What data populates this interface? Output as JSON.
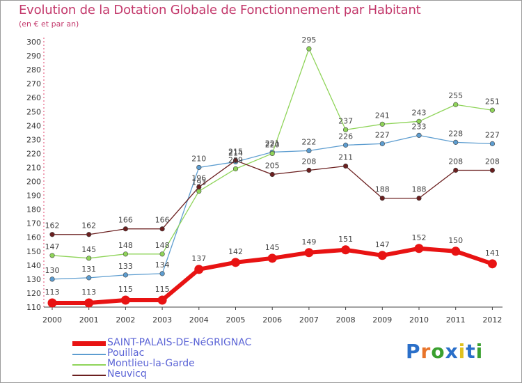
{
  "title": "Evolution de la Dotation Globale de Fonctionnement par Habitant",
  "subtitle": "(en € et par an)",
  "logo": {
    "text": "Proxiti",
    "colors": [
      "#2a6fc9",
      "#e8742a",
      "#3aa02f",
      "#2a6fc9",
      "#e0c11f",
      "#2a6fc9",
      "#3aa02f"
    ]
  },
  "chart_data": {
    "type": "line",
    "title": "Evolution de la Dotation Globale de Fonctionnement par Habitant",
    "subtitle": "(en € et par an)",
    "ylim": [
      110,
      300
    ],
    "y_ticks": [
      "110",
      "120",
      "130",
      "140",
      "150",
      "160",
      "170",
      "180",
      "190",
      "200",
      "210",
      "220",
      "230",
      "240",
      "250",
      "260",
      "270",
      "280",
      "290",
      "300"
    ],
    "x": [
      "2000",
      "2001",
      "2002",
      "2003",
      "2004",
      "2005",
      "2006",
      "2007",
      "2008",
      "2009",
      "2010",
      "2011",
      "2012"
    ],
    "grid": false,
    "legend_position": "bottom-left",
    "series": [
      {
        "name": "SAINT-PALAIS-DE-NéGRIGNAC",
        "color": "#e81313",
        "values": [
          113,
          113,
          115,
          115,
          137,
          142,
          145,
          149,
          151,
          147,
          152,
          150,
          141
        ],
        "labels": [
          "113",
          "113",
          "115",
          "115",
          "137",
          "142",
          "145",
          "149",
          "151",
          "147",
          "152",
          "150",
          "141"
        ]
      },
      {
        "name": "Pouillac",
        "color": "#5d9dd0",
        "values": [
          130,
          131,
          133,
          134,
          210,
          214,
          221,
          222,
          226,
          227,
          233,
          228,
          227
        ],
        "labels": [
          "130",
          "131",
          "133",
          "134",
          "210",
          "214",
          "221",
          "222",
          "226",
          "227",
          "233",
          "228",
          "227"
        ]
      },
      {
        "name": "Montlieu-la-Garde",
        "color": "#8fd459",
        "values": [
          147,
          145,
          148,
          148,
          193,
          209,
          220,
          295,
          237,
          241,
          243,
          255,
          251
        ],
        "labels": [
          "147",
          "145",
          "148",
          "148",
          "193",
          "209",
          "220",
          "295",
          "237",
          "241",
          "243",
          "255",
          "251"
        ]
      },
      {
        "name": "Neuvicq",
        "color": "#6b1f1f",
        "values": [
          162,
          162,
          166,
          166,
          196,
          215,
          205,
          208,
          211,
          188,
          188,
          208,
          208
        ],
        "labels": [
          "162",
          "162",
          "166",
          "166",
          "196",
          "215",
          "205",
          "208",
          "211",
          "188",
          "188",
          "208",
          "208"
        ]
      }
    ]
  }
}
